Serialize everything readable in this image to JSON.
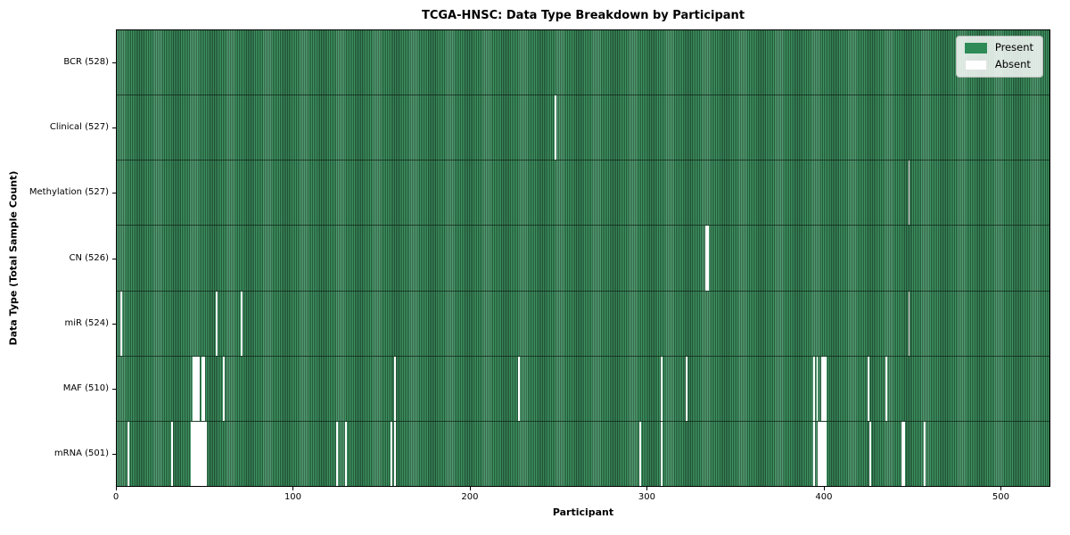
{
  "title": "TCGA-HNSC: Data Type Breakdown by Participant",
  "xlabel": "Participant",
  "ylabel": "Data Type (Total Sample Count)",
  "legend": {
    "present_label": "Present",
    "absent_label": "Absent"
  },
  "colors": {
    "present": "#2e8b57",
    "present_stripe_light": "#3e9662",
    "present_stripe_dark": "#25573a",
    "absent": "#ffffff"
  },
  "chart_data": {
    "type": "heatmap",
    "title": "TCGA-HNSC: Data Type Breakdown by Participant",
    "xlabel": "Participant",
    "ylabel": "Data Type (Total Sample Count)",
    "xlim": [
      0,
      528
    ],
    "x_ticks": [
      0,
      100,
      200,
      300,
      400,
      500
    ],
    "legend": [
      "Present",
      "Absent"
    ],
    "legend_position": "upper right",
    "grid": false,
    "total_participants": 528,
    "rows": [
      {
        "label": "BCR (528)",
        "data_type": "BCR",
        "count": 528,
        "absent_participants": []
      },
      {
        "label": "Clinical (527)",
        "data_type": "Clinical",
        "count": 527,
        "absent_participants": [
          248
        ]
      },
      {
        "label": "Methylation (527)",
        "data_type": "Methylation",
        "count": 527,
        "absent_participants": [
          448
        ]
      },
      {
        "label": "CN (526)",
        "data_type": "CN",
        "count": 526,
        "absent_participants": [
          333,
          334
        ]
      },
      {
        "label": "miR (524)",
        "data_type": "miR",
        "count": 524,
        "absent_participants": [
          2,
          56,
          70,
          448
        ]
      },
      {
        "label": "MAF (510)",
        "data_type": "MAF",
        "count": 510,
        "absent_participants": [
          43,
          44,
          45,
          46,
          48,
          49,
          60,
          157,
          227,
          308,
          322,
          394,
          396,
          399,
          400,
          401,
          425,
          435
        ]
      },
      {
        "label": "mRNA (501)",
        "data_type": "mRNA",
        "count": 501,
        "absent_participants": [
          6,
          31,
          42,
          43,
          44,
          45,
          46,
          47,
          48,
          49,
          50,
          124,
          129,
          155,
          157,
          296,
          308,
          394,
          397,
          398,
          399,
          400,
          401,
          426,
          444,
          445,
          457
        ]
      }
    ]
  }
}
